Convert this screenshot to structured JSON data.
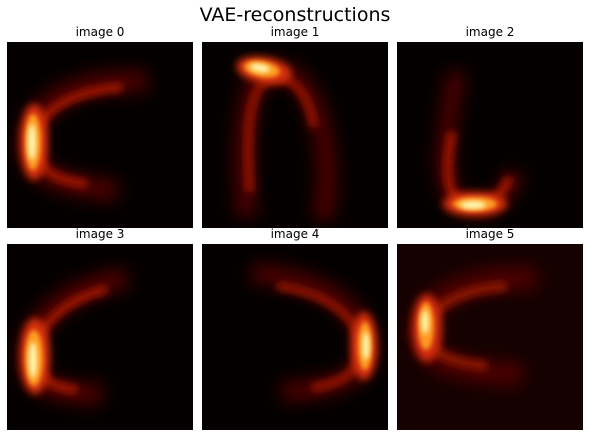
{
  "figure": {
    "title": "VAE-reconstructions"
  },
  "panels": [
    {
      "title": "image 0",
      "shape": "open-right-curve-bright-left"
    },
    {
      "title": "image 1",
      "shape": "arch-bright-top-left"
    },
    {
      "title": "image 2",
      "shape": "u-curve-bright-bottom"
    },
    {
      "title": "image 3",
      "shape": "open-right-curve-bright-lower-left"
    },
    {
      "title": "image 4",
      "shape": "open-left-curve-bright-right"
    },
    {
      "title": "image 5",
      "shape": "open-right-curve-bright-upper-left"
    }
  ],
  "colormap": {
    "name": "hot",
    "background": "#050000",
    "glow": "#6a0a04",
    "mid": "#d02a0a",
    "hot": "#ff8a1c",
    "peak": "#fff8c0"
  }
}
